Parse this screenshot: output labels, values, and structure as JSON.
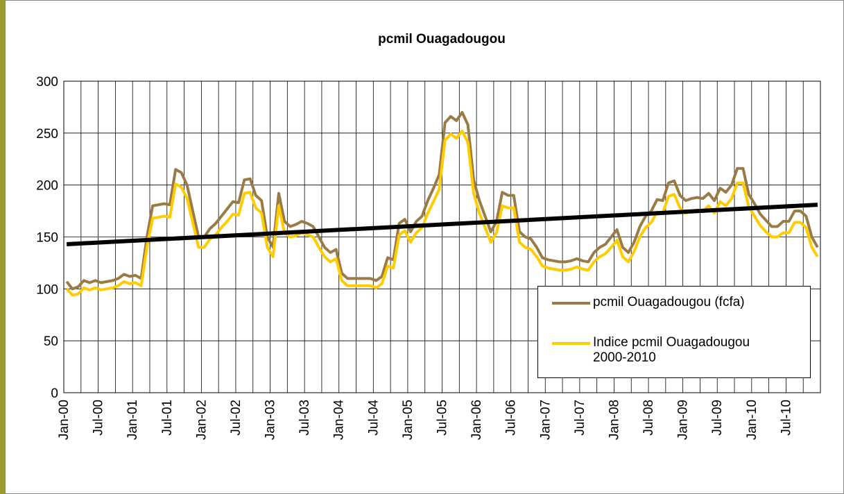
{
  "chart_data": {
    "type": "line",
    "title": "pcmil Ouagadougou",
    "categories": [
      "Jan-00",
      null,
      null,
      null,
      null,
      null,
      "Jul-00",
      null,
      null,
      null,
      null,
      null,
      "Jan-01",
      null,
      null,
      null,
      null,
      null,
      "Jul-01",
      null,
      null,
      null,
      null,
      null,
      "Jan-02",
      null,
      null,
      null,
      null,
      null,
      "Jul-02",
      null,
      null,
      null,
      null,
      null,
      "Jan-03",
      null,
      null,
      null,
      null,
      null,
      "Jul-03",
      null,
      null,
      null,
      null,
      null,
      "Jan-04",
      null,
      null,
      null,
      null,
      null,
      "Jul-04",
      null,
      null,
      null,
      null,
      null,
      "Jan-05",
      null,
      null,
      null,
      null,
      null,
      "Jul-05",
      null,
      null,
      null,
      null,
      null,
      "Jan-06",
      null,
      null,
      null,
      null,
      null,
      "Jul-06",
      null,
      null,
      null,
      null,
      null,
      "Jan-07",
      null,
      null,
      null,
      null,
      null,
      "Jul-07",
      null,
      null,
      null,
      null,
      null,
      "Jan-08",
      null,
      null,
      null,
      null,
      null,
      "Jul-08",
      null,
      null,
      null,
      null,
      null,
      "Jan-09",
      null,
      null,
      null,
      null,
      null,
      "Jul-09",
      null,
      null,
      null,
      null,
      null,
      "Jan-10",
      null,
      null,
      null,
      null,
      null,
      "Jul-10",
      null,
      null,
      null,
      null,
      null
    ],
    "series": [
      {
        "name": "pcmil Ouagadougou (fcfa)",
        "color": "#9a7b45",
        "values": [
          107,
          100,
          102,
          108,
          106,
          108,
          106,
          107,
          108,
          110,
          114,
          112,
          113,
          110,
          150,
          180,
          181,
          182,
          181,
          215,
          212,
          200,
          175,
          150,
          150,
          158,
          163,
          170,
          177,
          184,
          183,
          205,
          206,
          190,
          185,
          150,
          140,
          192,
          165,
          160,
          162,
          165,
          163,
          160,
          150,
          140,
          135,
          138,
          115,
          110,
          110,
          110,
          110,
          110,
          108,
          112,
          130,
          128,
          163,
          167,
          155,
          165,
          170,
          185,
          197,
          210,
          260,
          266,
          262,
          270,
          258,
          205,
          185,
          170,
          155,
          165,
          193,
          190,
          190,
          155,
          150,
          148,
          140,
          130,
          128,
          127,
          126,
          126,
          127,
          129,
          127,
          126,
          135,
          140,
          143,
          150,
          157,
          140,
          135,
          145,
          160,
          170,
          175,
          186,
          185,
          202,
          204,
          190,
          185,
          187,
          188,
          187,
          192,
          185,
          197,
          193,
          200,
          216,
          216,
          191,
          182,
          172,
          166,
          160,
          160,
          165,
          165,
          175,
          175,
          170,
          150,
          140
        ]
      },
      {
        "name": "Indice pcmil Ouagadougou 2000-2010",
        "color": "#ffcc00",
        "values": [
          100,
          94,
          95,
          101,
          99,
          101,
          99,
          100,
          101,
          103,
          107,
          105,
          106,
          103,
          140,
          168,
          169,
          170,
          169,
          201,
          198,
          187,
          164,
          140,
          140,
          148,
          152,
          159,
          165,
          172,
          171,
          192,
          193,
          178,
          173,
          140,
          131,
          180,
          154,
          150,
          151,
          154,
          152,
          150,
          140,
          131,
          126,
          129,
          108,
          103,
          103,
          103,
          103,
          103,
          101,
          105,
          122,
          120,
          152,
          156,
          145,
          154,
          159,
          173,
          184,
          196,
          243,
          249,
          245,
          252,
          241,
          192,
          173,
          159,
          145,
          154,
          180,
          178,
          178,
          145,
          140,
          138,
          131,
          122,
          120,
          119,
          118,
          118,
          119,
          121,
          119,
          118,
          126,
          131,
          134,
          140,
          147,
          131,
          126,
          136,
          150,
          159,
          164,
          174,
          173,
          189,
          191,
          178,
          173,
          175,
          176,
          175,
          180,
          173,
          184,
          180,
          187,
          202,
          202,
          179,
          170,
          161,
          155,
          150,
          150,
          154,
          154,
          164,
          164,
          159,
          140,
          131
        ]
      }
    ],
    "trend": {
      "color": "#000000",
      "values": [
        143,
        181
      ]
    },
    "ylim": [
      0,
      300
    ],
    "yticks": [
      0,
      50,
      100,
      150,
      200,
      250,
      300
    ],
    "grid": true
  }
}
